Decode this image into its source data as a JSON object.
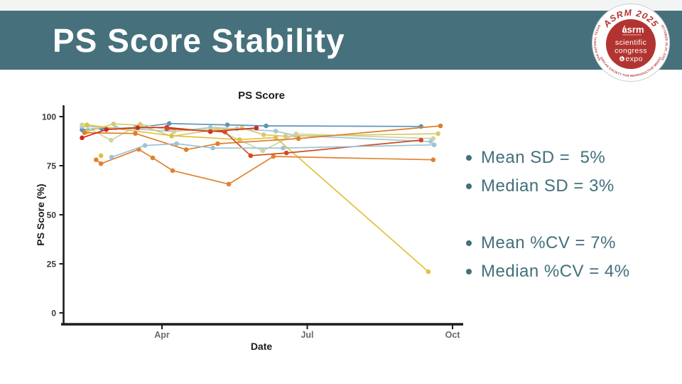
{
  "slide": {
    "title": "PS Score Stability",
    "accent_teal": "#46717c",
    "background": "#ffffff"
  },
  "logo": {
    "red": "#b23431",
    "banner": "ASRM 2025",
    "org": "asrm",
    "line1": "scientific",
    "line2": "congress",
    "amp": "&",
    "expo": "expo",
    "city_arc": "SAN ANTONIO, TEXAS",
    "date_arc": "OCTOBER 25-29, 2025",
    "bottom_arc": "AMERICAN SOCIETY FOR REPRODUCTIVE MEDICINE"
  },
  "stats": {
    "items": [
      "Mean SD =  5%",
      "Median SD = 3%",
      "Mean %CV = 7%",
      "Median %CV = 4%"
    ]
  },
  "chart_data": {
    "type": "line",
    "title": "PS Score",
    "xlabel": "Date",
    "ylabel": "PS Score (%)",
    "x_encoding": "month number (Apr=4, Jul=7, Oct=10)",
    "x_range": [
      2.1,
      10.2
    ],
    "y_range": [
      0,
      105
    ],
    "grid": false,
    "legend": "none",
    "x_ticks": [
      {
        "v": 4,
        "label": "Apr"
      },
      {
        "v": 7,
        "label": "Jul"
      },
      {
        "v": 10,
        "label": "Oct"
      }
    ],
    "y_ticks": [
      {
        "v": 0,
        "label": "0"
      },
      {
        "v": 25,
        "label": "25"
      },
      {
        "v": 50,
        "label": "50"
      },
      {
        "v": 75,
        "label": "75"
      },
      {
        "v": 100,
        "label": "100"
      }
    ],
    "series": [
      {
        "name": "subject-steelblue",
        "color": "#5e95b7",
        "points": [
          [
            2.35,
            93.3
          ],
          [
            2.75,
            94.0
          ],
          [
            3.45,
            94.3
          ],
          [
            4.15,
            96.5
          ],
          [
            5.35,
            95.8
          ],
          [
            6.15,
            95.3
          ],
          [
            9.35,
            95.0
          ]
        ]
      },
      {
        "name": "subject-lightblue-high",
        "color": "#a4c7d7",
        "points": [
          [
            2.35,
            95.0
          ],
          [
            3.05,
            94.3
          ],
          [
            4.25,
            92.4
          ],
          [
            5.0,
            94.5
          ],
          [
            5.55,
            93.8
          ],
          [
            6.35,
            92.6
          ],
          [
            6.75,
            90.4
          ],
          [
            9.55,
            87.3
          ]
        ]
      },
      {
        "name": "subject-paleolive",
        "color": "#ccd5a3",
        "points": [
          [
            2.35,
            95.8
          ],
          [
            2.95,
            88.0
          ],
          [
            3.55,
            96.2
          ],
          [
            4.25,
            92.6
          ],
          [
            5.1,
            93.8
          ],
          [
            6.08,
            82.6
          ],
          [
            6.77,
            91.2
          ],
          [
            9.6,
            88.8
          ]
        ]
      },
      {
        "name": "subject-khaki",
        "color": "#d7ca6f",
        "points": [
          [
            2.45,
            92.3
          ],
          [
            3.0,
            96.3
          ],
          [
            3.55,
            95.6
          ],
          [
            4.2,
            90.0
          ],
          [
            5.15,
            93.5
          ],
          [
            5.65,
            94.2
          ],
          [
            6.1,
            90.8
          ],
          [
            6.55,
            90.0
          ],
          [
            9.7,
            91.3
          ]
        ]
      },
      {
        "name": "subject-yellow-crash",
        "color": "#e2c13d",
        "points": [
          [
            2.45,
            95.8
          ],
          [
            4.2,
            90.3
          ],
          [
            5.6,
            88.3
          ],
          [
            6.35,
            89.3
          ],
          [
            9.5,
            21.0
          ]
        ]
      },
      {
        "name": "subject-yellow-single",
        "color": "#e2c13d",
        "points": [
          [
            2.74,
            80.1
          ]
        ]
      },
      {
        "name": "subject-orange-dip",
        "color": "#e08230",
        "points": [
          [
            2.64,
            78.0
          ],
          [
            2.74,
            76.0
          ],
          [
            3.52,
            83.3
          ],
          [
            3.81,
            79.0
          ],
          [
            4.22,
            72.5
          ],
          [
            5.38,
            65.6
          ],
          [
            6.3,
            79.7
          ],
          [
            9.6,
            78.0
          ]
        ]
      },
      {
        "name": "subject-orange-high",
        "color": "#df7d2a",
        "points": [
          [
            2.4,
            91.8
          ],
          [
            3.45,
            91.4
          ],
          [
            4.5,
            83.2
          ],
          [
            5.15,
            86.2
          ],
          [
            6.82,
            88.8
          ],
          [
            9.75,
            95.3
          ]
        ]
      },
      {
        "name": "subject-red",
        "color": "#d02b18",
        "points": [
          [
            2.35,
            89.2
          ],
          [
            2.85,
            93.4
          ],
          [
            3.5,
            94.3
          ],
          [
            4.1,
            94.5
          ],
          [
            5.0,
            92.4
          ],
          [
            5.95,
            94.2
          ]
        ]
      },
      {
        "name": "subject-redorange",
        "color": "#d14d20",
        "points": [
          [
            4.1,
            93.8
          ],
          [
            5.3,
            92.2
          ],
          [
            5.83,
            80.1
          ],
          [
            6.57,
            81.5
          ],
          [
            9.35,
            88.0
          ]
        ]
      },
      {
        "name": "subject-lightblue-mid",
        "color": "#9ec2d4",
        "points": [
          [
            2.96,
            79.3
          ],
          [
            3.65,
            85.3
          ],
          [
            4.3,
            86.2
          ],
          [
            5.05,
            84.0
          ],
          [
            6.5,
            84.0
          ],
          [
            9.62,
            85.6
          ]
        ]
      }
    ]
  }
}
